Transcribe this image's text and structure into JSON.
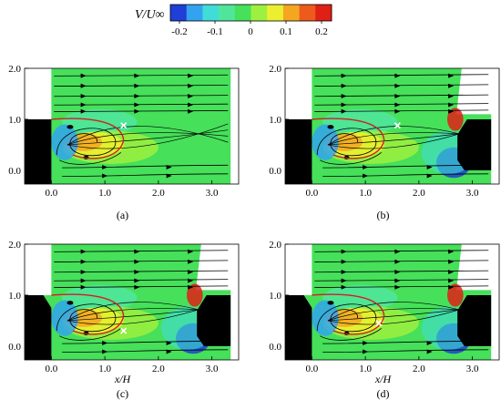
{
  "colorbar": {
    "label": "V/U∞",
    "colors": [
      "#1f3fd6",
      "#33a3f0",
      "#40dcd8",
      "#4fe69a",
      "#46e05a",
      "#9ef040",
      "#ecef2f",
      "#f4a620",
      "#ec5a1c",
      "#e01f16"
    ],
    "tick_labels": [
      "-0.2",
      "-0.1",
      "0",
      "0.1",
      "0.2"
    ]
  },
  "panels": [
    {
      "label": "(a)",
      "x_ticks": [
        "0.0",
        "1.0",
        "2.0",
        "3.0"
      ],
      "y_ticks": [
        "0.0",
        "1.0",
        "2.0"
      ],
      "xlabel": ""
    },
    {
      "label": "(b)",
      "x_ticks": [
        "0.0",
        "1.0",
        "2.0",
        "3.0"
      ],
      "y_ticks": [
        "0.0",
        "1.0",
        "2.0"
      ],
      "xlabel": ""
    },
    {
      "label": "(c)",
      "x_ticks": [
        "0.0",
        "1.0",
        "2.0",
        "3.0"
      ],
      "y_ticks": [
        "0.0",
        "1.0",
        "2.0"
      ],
      "xlabel": "x/H"
    },
    {
      "label": "(d)",
      "x_ticks": [
        "0.0",
        "1.0",
        "2.0",
        "3.0"
      ],
      "y_ticks": [
        "0.0",
        "1.0",
        "2.0"
      ],
      "xlabel": "x/H"
    }
  ],
  "colors": {
    "background_field": "#46e05a",
    "obstacle": "#000000",
    "separation_line": "#d02020",
    "streamline": "#000000",
    "marker": "#ffffff"
  }
}
